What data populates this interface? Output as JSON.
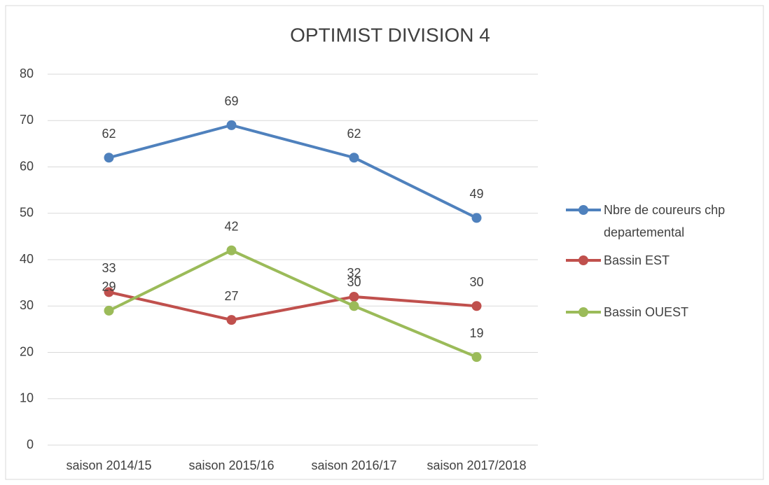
{
  "chart_data": {
    "type": "line",
    "title": "OPTIMIST DIVISION 4",
    "categories": [
      "saison 2014/15",
      "saison 2015/16",
      "saison 2016/17",
      "saison 2017/2018"
    ],
    "series": [
      {
        "name": "Nbre de coureurs  chp departemental",
        "color": "#4f81bd",
        "values": [
          62,
          69,
          62,
          49
        ]
      },
      {
        "name": "Bassin EST",
        "color": "#c0504d",
        "values": [
          33,
          27,
          32,
          30
        ]
      },
      {
        "name": "Bassin OUEST",
        "color": "#9bbb59",
        "values": [
          29,
          42,
          30,
          19
        ]
      }
    ],
    "ylim": [
      0,
      80
    ],
    "yticks": [
      0,
      10,
      20,
      30,
      40,
      50,
      60,
      70,
      80
    ],
    "grid": true,
    "legend": "right",
    "data_labels": true
  }
}
